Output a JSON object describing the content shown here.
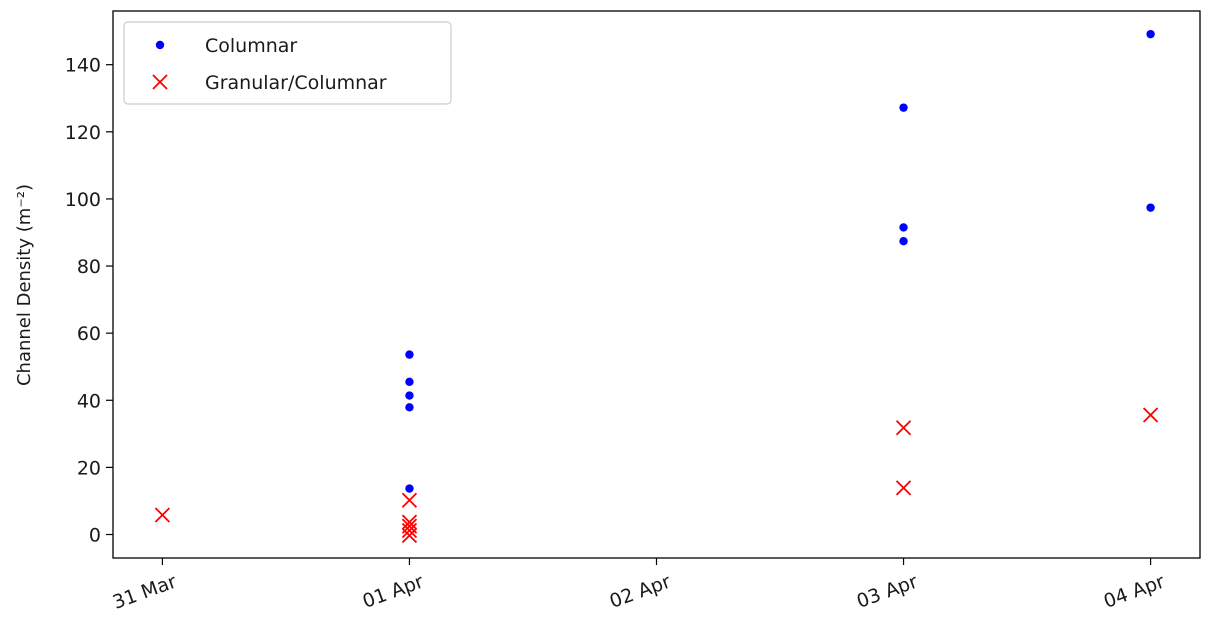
{
  "chart_data": {
    "type": "scatter",
    "title": "",
    "xlabel": "",
    "ylabel": "Channel Density (m⁻²)",
    "x_axis": {
      "type": "date",
      "ticks": [
        "31 Mar",
        "01 Apr",
        "02 Apr",
        "03 Apr",
        "04 Apr"
      ],
      "tick_rotation_deg": -20
    },
    "ylim": [
      -7,
      156
    ],
    "y_ticks": [
      0,
      20,
      40,
      60,
      80,
      100,
      120,
      140
    ],
    "grid": false,
    "legend": {
      "placement": "top-left"
    },
    "series": [
      {
        "name": "Columnar",
        "marker": "dot",
        "color": "#0000ff",
        "points": [
          {
            "x": "01 Apr",
            "y": 53.6
          },
          {
            "x": "01 Apr",
            "y": 45.5
          },
          {
            "x": "01 Apr",
            "y": 41.4
          },
          {
            "x": "01 Apr",
            "y": 37.9
          },
          {
            "x": "01 Apr",
            "y": 13.7
          },
          {
            "x": "03 Apr",
            "y": 127.2
          },
          {
            "x": "03 Apr",
            "y": 91.5
          },
          {
            "x": "03 Apr",
            "y": 87.4
          },
          {
            "x": "04 Apr",
            "y": 149.1
          },
          {
            "x": "04 Apr",
            "y": 97.4
          }
        ]
      },
      {
        "name": "Granular/Columnar",
        "marker": "x",
        "color": "#ff0000",
        "points": [
          {
            "x": "31 Mar",
            "y": 5.8
          },
          {
            "x": "01 Apr",
            "y": 10.2
          },
          {
            "x": "01 Apr",
            "y": 3.7
          },
          {
            "x": "01 Apr",
            "y": 2.5
          },
          {
            "x": "01 Apr",
            "y": 1.2
          },
          {
            "x": "01 Apr",
            "y": -0.3
          },
          {
            "x": "03 Apr",
            "y": 31.8
          },
          {
            "x": "03 Apr",
            "y": 13.9
          },
          {
            "x": "04 Apr",
            "y": 35.6
          }
        ]
      }
    ]
  }
}
